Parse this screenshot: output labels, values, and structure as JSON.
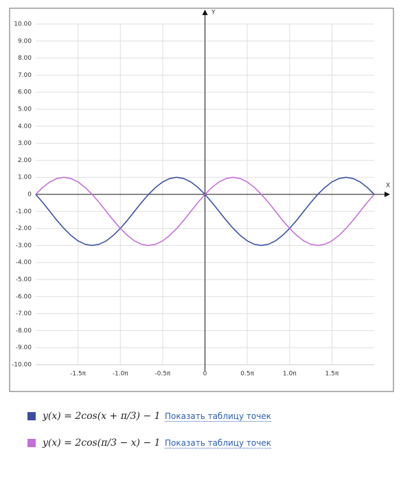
{
  "chart_data": {
    "type": "line",
    "x_label": "X",
    "y_label": "Y",
    "xlim": [
      -2,
      2
    ],
    "ylim": [
      -10,
      10
    ],
    "grid": true,
    "xticks": [
      {
        "value": -1.5,
        "label": "-1.5π"
      },
      {
        "value": -1,
        "label": "-1.0π"
      },
      {
        "value": -0.5,
        "label": "-0.5π"
      },
      0,
      {
        "value": 0.5,
        "label": "0.5π"
      },
      {
        "value": 1,
        "label": "1.0π"
      },
      {
        "value": 1.5,
        "label": "1.5π"
      }
    ],
    "yticks": [
      {
        "value": 10,
        "label": "10.00"
      },
      {
        "value": 9,
        "label": "9.00"
      },
      {
        "value": 8,
        "label": "8.00"
      },
      {
        "value": 7,
        "label": "7.00"
      },
      {
        "value": 6,
        "label": "6.00"
      },
      {
        "value": 5,
        "label": "5.00"
      },
      {
        "value": 4,
        "label": "4.00"
      },
      {
        "value": 3,
        "label": "3.00"
      },
      {
        "value": 2,
        "label": "2.00"
      },
      {
        "value": 1,
        "label": "1.00"
      },
      0,
      {
        "value": -1,
        "label": "-1.00"
      },
      {
        "value": -2,
        "label": "-2.00"
      },
      {
        "value": -3,
        "label": "-3.00"
      },
      {
        "value": -4,
        "label": "-4.00"
      },
      {
        "value": -5,
        "label": "-5.00"
      },
      {
        "value": -6,
        "label": "-6.00"
      },
      {
        "value": -7,
        "label": "-7.00"
      },
      {
        "value": -8,
        "label": "-8.00"
      },
      {
        "value": -9,
        "label": "-9.00"
      },
      {
        "value": -10,
        "label": "-10.00"
      }
    ],
    "x": [
      -2,
      -1.9167,
      -1.8333,
      -1.75,
      -1.6667,
      -1.5833,
      -1.5,
      -1.4167,
      -1.3333,
      -1.25,
      -1.1667,
      -1.0833,
      -1,
      -0.9167,
      -0.8333,
      -0.75,
      -0.6667,
      -0.5833,
      -0.5,
      -0.4167,
      -0.3333,
      -0.25,
      -0.1667,
      -0.0833,
      0,
      0.0833,
      0.1667,
      0.25,
      0.3333,
      0.4167,
      0.5,
      0.5833,
      0.6667,
      0.75,
      0.8333,
      0.9167,
      1,
      1.0833,
      1.1667,
      1.25,
      1.3333,
      1.4167,
      1.5,
      1.5833,
      1.6667,
      1.75,
      1.8333,
      1.9167,
      2
    ],
    "series": [
      {
        "name": "y(x) = 2cos(x + π/3) − 1",
        "color": "#3b4ea3",
        "values": [
          0,
          -0.48,
          -1,
          -1.52,
          -2,
          -2.41,
          -2.73,
          -2.93,
          -3,
          -2.93,
          -2.73,
          -2.41,
          -2,
          -1.52,
          -1,
          -0.48,
          0,
          0.41,
          0.73,
          0.93,
          1,
          0.93,
          0.73,
          0.41,
          0,
          -0.48,
          -1,
          -1.52,
          -2,
          -2.41,
          -2.73,
          -2.93,
          -3,
          -2.93,
          -2.73,
          -2.41,
          -2,
          -1.52,
          -1,
          -0.48,
          0,
          0.41,
          0.73,
          0.93,
          1,
          0.93,
          0.73,
          0.41,
          0
        ]
      },
      {
        "name": "y(x) = 2cos(π/3 − x) − 1",
        "color": "#c46fda",
        "values": [
          0,
          0.41,
          0.73,
          0.93,
          1,
          0.93,
          0.73,
          0.41,
          0,
          -0.48,
          -1,
          -1.52,
          -2,
          -2.41,
          -2.73,
          -2.93,
          -3,
          -2.93,
          -2.73,
          -2.41,
          -2,
          -1.52,
          -1,
          -0.48,
          0,
          0.41,
          0.73,
          0.93,
          1,
          0.93,
          0.73,
          0.41,
          0,
          -0.48,
          -1,
          -1.52,
          -2,
          -2.41,
          -2.73,
          -2.93,
          -3,
          -2.93,
          -2.73,
          -2.41,
          -2,
          -1.52,
          -1,
          -0.48,
          0
        ]
      }
    ]
  },
  "legend_links": [
    "Показать таблицу точек",
    "Показать таблицу точек"
  ]
}
